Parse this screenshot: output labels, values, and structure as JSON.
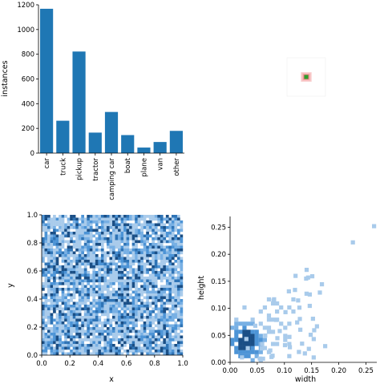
{
  "colors": {
    "bar": "#1f77b4",
    "hist_light": "#a9cbeb",
    "hist_mid": "#4d94d6",
    "hist_dark": "#1b4f86",
    "box_outline": "#d62728",
    "box_center": "#2ca02c"
  },
  "chart_data": [
    {
      "id": "class-counts",
      "type": "bar",
      "categories": [
        "car",
        "truck",
        "pickup",
        "tractor",
        "camping car",
        "boat",
        "plane",
        "van",
        "other"
      ],
      "values": [
        1168,
        262,
        822,
        166,
        333,
        146,
        45,
        90,
        180
      ],
      "title": "",
      "xlabel": "",
      "ylabel": "instances",
      "ylim": [
        0,
        1200
      ],
      "yticks": [
        0,
        200,
        400,
        600,
        800,
        1000,
        1200
      ],
      "grid": false
    },
    {
      "id": "box-overlay",
      "type": "scatter",
      "description_level": "centered rectangles of the labels overlaid",
      "points": [
        {
          "x": 0.5,
          "y": 0.5,
          "w": 0.04,
          "h": 0.05
        },
        {
          "x": 0.5,
          "y": 0.5,
          "w": 0.06,
          "h": 0.07
        },
        {
          "x": 0.5,
          "y": 0.5,
          "w": 0.09,
          "h": 0.08
        },
        {
          "x": 0.5,
          "y": 0.5,
          "w": 0.12,
          "h": 0.1
        },
        {
          "x": 0.5,
          "y": 0.5,
          "w": 0.15,
          "h": 0.13
        },
        {
          "x": 0.5,
          "y": 0.5,
          "w": 0.2,
          "h": 0.17
        },
        {
          "x": 0.5,
          "y": 0.5,
          "w": 0.25,
          "h": 0.22
        }
      ],
      "xlim": [
        0,
        1
      ],
      "ylim": [
        0,
        1
      ]
    },
    {
      "id": "xy-hist",
      "type": "heatmap",
      "xlabel": "x",
      "ylabel": "y",
      "xlim": [
        0,
        1
      ],
      "ylim": [
        0,
        1
      ],
      "xticks": [
        "0.0",
        "0.2",
        "0.4",
        "0.6",
        "0.8",
        "1.0"
      ],
      "yticks": [
        "0.0",
        "0.2",
        "0.4",
        "0.6",
        "0.8",
        "1.0"
      ],
      "bins": 50,
      "distribution": "uniform"
    },
    {
      "id": "wh-hist",
      "type": "heatmap",
      "xlabel": "width",
      "ylabel": "height",
      "xlim": [
        0,
        0.27
      ],
      "ylim": [
        0,
        0.27
      ],
      "xticks": [
        "0.00",
        "0.05",
        "0.10",
        "0.15",
        "0.20",
        "0.25"
      ],
      "yticks": [
        "0.00",
        "0.05",
        "0.10",
        "0.15",
        "0.20",
        "0.25"
      ],
      "distribution": "concentrated near small width/height",
      "core": {
        "width": 0.03,
        "height": 0.04
      },
      "outliers": [
        {
          "width": 0.265,
          "height": 0.252
        },
        {
          "width": 0.226,
          "height": 0.222
        },
        {
          "width": 0.14,
          "height": 0.155
        },
        {
          "width": 0.175,
          "height": 0.03
        },
        {
          "width": 0.145,
          "height": 0.025
        },
        {
          "width": 0.11,
          "height": 0.028
        }
      ]
    }
  ]
}
